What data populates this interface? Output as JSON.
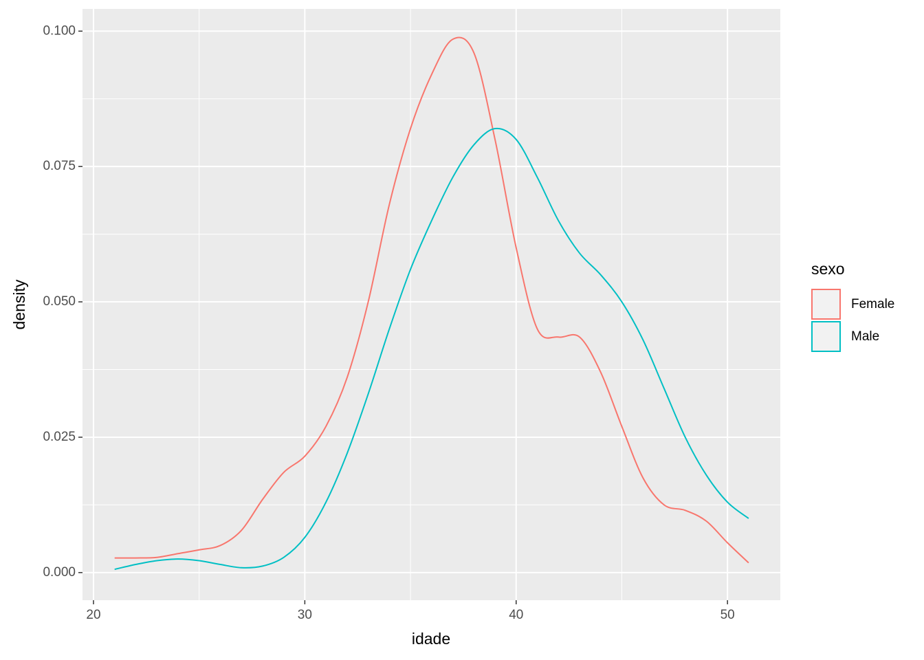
{
  "chart_data": {
    "type": "density",
    "x_label": "idade",
    "y_label": "density",
    "legend_title": "sexo",
    "legend_position": "right",
    "x": [
      21,
      22,
      23,
      24,
      25,
      26,
      27,
      28,
      29,
      30,
      31,
      32,
      33,
      34,
      35,
      36,
      37,
      38,
      39,
      40,
      41,
      42,
      43,
      44,
      45,
      46,
      47,
      48,
      49,
      50,
      51
    ],
    "series": [
      {
        "name": "Female",
        "color": "#f8766d",
        "values": [
          0.0027,
          0.0027,
          0.0028,
          0.0035,
          0.0042,
          0.005,
          0.0078,
          0.0135,
          0.0185,
          0.0215,
          0.027,
          0.036,
          0.05,
          0.068,
          0.082,
          0.092,
          0.0985,
          0.096,
          0.08,
          0.06,
          0.045,
          0.0435,
          0.0435,
          0.037,
          0.027,
          0.0175,
          0.0125,
          0.0115,
          0.0095,
          0.0055,
          0.0018
        ]
      },
      {
        "name": "Male",
        "color": "#00bfc4",
        "values": [
          0.0006,
          0.0015,
          0.0022,
          0.0025,
          0.0022,
          0.0015,
          0.0009,
          0.0012,
          0.0028,
          0.0065,
          0.013,
          0.022,
          0.033,
          0.045,
          0.056,
          0.065,
          0.073,
          0.079,
          0.082,
          0.08,
          0.073,
          0.065,
          0.059,
          0.055,
          0.05,
          0.043,
          0.034,
          0.025,
          0.018,
          0.013,
          0.01
        ]
      }
    ],
    "xlim": [
      19.48,
      52.5
    ],
    "ylim": [
      -0.0051,
      0.1041
    ],
    "xticks": [
      20,
      30,
      40,
      50
    ],
    "yticks": [
      {
        "value": 0,
        "label": "0.000"
      },
      {
        "value": 0.025,
        "label": "0.025"
      },
      {
        "value": 0.05,
        "label": "0.050"
      },
      {
        "value": 0.075,
        "label": "0.075"
      },
      {
        "value": 0.1,
        "label": "0.100"
      }
    ],
    "xminorticks": [
      25,
      35,
      45
    ],
    "yminorticks": [
      0.0125,
      0.0375,
      0.0625,
      0.0875
    ],
    "grid": true
  }
}
